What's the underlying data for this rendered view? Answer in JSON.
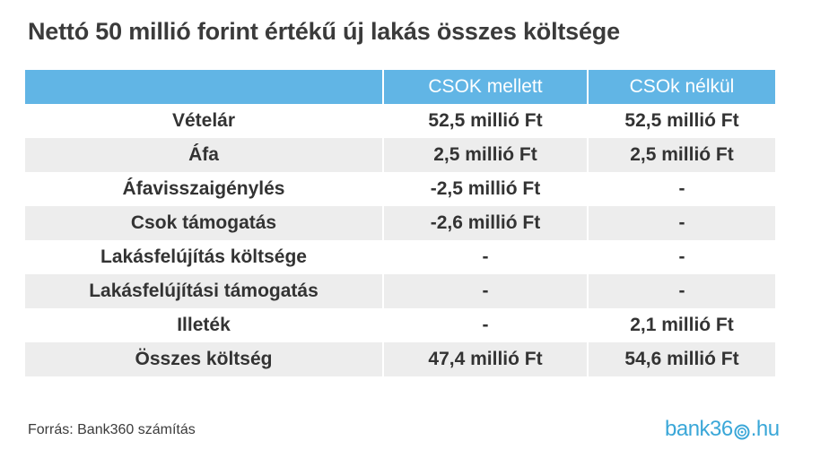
{
  "title": "Nettó 50 millió forint értékű új lakás összes költsége",
  "colors": {
    "header_bg": "#61b5e5",
    "shaded_row": "#ededed",
    "logo": "#3aa7d8"
  },
  "chart_data": {
    "type": "table",
    "columns": [
      "",
      "CSOK mellett",
      "CSOk nélkül"
    ],
    "rows": [
      [
        "Vételár",
        "52,5 millió Ft",
        "52,5 millió Ft"
      ],
      [
        "Áfa",
        "2,5 millió Ft",
        "2,5 millió Ft"
      ],
      [
        "Áfavisszaigénylés",
        "-2,5 millió Ft",
        "-"
      ],
      [
        "Csok támogatás",
        "-2,6 millió Ft",
        "-"
      ],
      [
        "Lakásfelújítás költsége",
        "-",
        "-"
      ],
      [
        "Lakásfelújítási támogatás",
        "-",
        "-"
      ],
      [
        "Illeték",
        "-",
        "2,1 millió Ft"
      ],
      [
        "Összes költség",
        "47,4 millió Ft",
        "54,6 millió Ft"
      ]
    ]
  },
  "footer": {
    "source": "Forrás: Bank360 számítás",
    "logo_pre": "bank36",
    "logo_post": ".hu"
  }
}
